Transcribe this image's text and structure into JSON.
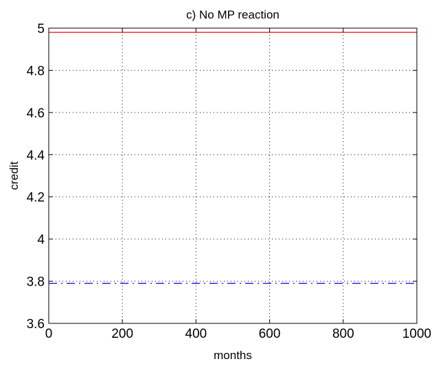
{
  "chart_data": {
    "type": "line",
    "title": "c) No MP reaction",
    "xlabel": "months",
    "ylabel": "credit",
    "xlim": [
      0,
      1000
    ],
    "ylim": [
      3.6,
      5.0
    ],
    "xticks": [
      "0",
      "200",
      "400",
      "600",
      "800",
      "1000"
    ],
    "yticks": [
      "3.6",
      "3.8",
      "4",
      "4.2",
      "4.4",
      "4.6",
      "4.8",
      "5"
    ],
    "grid": true,
    "grid_style": "dotted",
    "series": [
      {
        "style": "solid",
        "color": "#ff0000",
        "x": [
          0,
          1000
        ],
        "y": [
          4.98,
          4.98
        ]
      },
      {
        "style": "dash-dot",
        "color": "#0000ff",
        "x": [
          0,
          1000
        ],
        "y": [
          3.79,
          3.79
        ]
      }
    ]
  }
}
